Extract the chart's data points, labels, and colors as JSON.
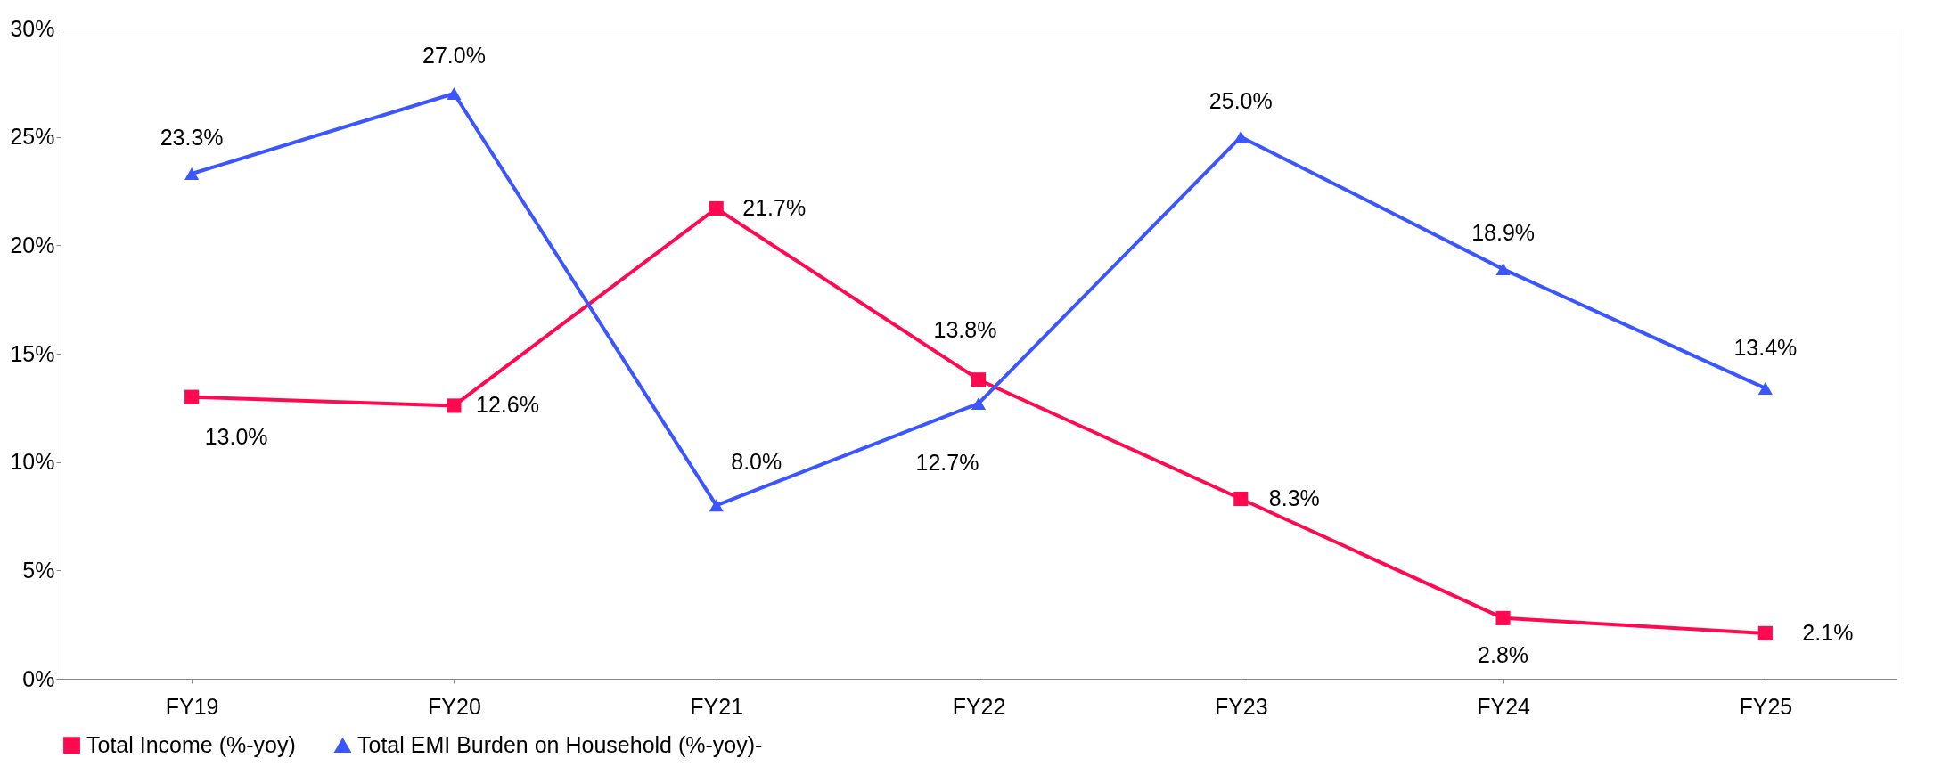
{
  "chart_data": {
    "type": "line",
    "categories": [
      "FY19",
      "FY20",
      "FY21",
      "FY22",
      "FY23",
      "FY24",
      "FY25"
    ],
    "series": [
      {
        "name": "Total Income (%-yoy)",
        "color": "#ff0a50",
        "marker": "square",
        "values": [
          13.0,
          12.6,
          21.7,
          13.8,
          8.3,
          2.8,
          2.1
        ],
        "value_labels": [
          "13.0%",
          "12.6%",
          "21.7%",
          "13.8%",
          "8.3%",
          "2.8%",
          "2.1%"
        ]
      },
      {
        "name": "Total EMI Burden on Household (%-yoy)-",
        "color": "#3b55ff",
        "marker": "triangle",
        "values": [
          23.3,
          27.0,
          8.0,
          12.7,
          25.0,
          18.9,
          13.4
        ],
        "value_labels": [
          "23.3%",
          "27.0%",
          "8.0%",
          "12.7%",
          "25.0%",
          "18.9%",
          "13.4%"
        ]
      }
    ],
    "ylim": [
      0,
      30
    ],
    "yticks": [
      {
        "value": 0,
        "label": "0%"
      },
      {
        "value": 5,
        "label": "5%"
      },
      {
        "value": 10,
        "label": "10%"
      },
      {
        "value": 15,
        "label": "15%"
      },
      {
        "value": 20,
        "label": "20%"
      },
      {
        "value": 25,
        "label": "25%"
      },
      {
        "value": 30,
        "label": "30%"
      }
    ],
    "legend": "bottom",
    "grid": false,
    "line_style": "solid"
  }
}
